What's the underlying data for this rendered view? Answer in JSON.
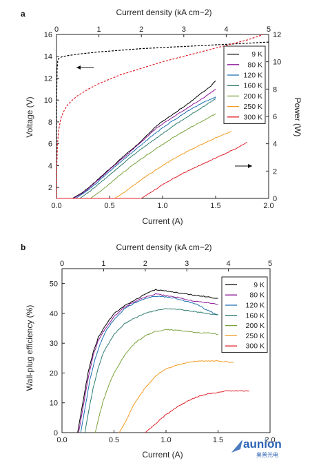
{
  "watermark": {
    "brand": "aunion",
    "tagline": "奥普光电"
  },
  "series_meta": [
    {
      "name": "9 K",
      "color": "#000000"
    },
    {
      "name": "80 K",
      "color": "#8e1a9a"
    },
    {
      "name": "120 K",
      "color": "#1a6fb0"
    },
    {
      "name": "160 K",
      "color": "#2b7a6e"
    },
    {
      "name": "200 K",
      "color": "#79a23a"
    },
    {
      "name": "250 K",
      "color": "#f29a1f"
    },
    {
      "name": "300 K",
      "color": "#e0202a"
    }
  ],
  "chart_data": [
    {
      "panel": "a",
      "type": "line",
      "xlabel": "Current (A)",
      "x_ticks": [
        "0.0",
        "0.5",
        "1.0",
        "1.5",
        "2.0"
      ],
      "xlim": [
        0,
        2.0
      ],
      "x2label": "Current density (kA cm−2)",
      "x2_ticks": [
        "0",
        "1",
        "2",
        "3",
        "4",
        "5"
      ],
      "x2lim": [
        0,
        5
      ],
      "ylabel": "Voltage (V)",
      "y_ticks": [
        "2",
        "4",
        "6",
        "8",
        "10",
        "12",
        "14",
        "16"
      ],
      "ylim": [
        1,
        16
      ],
      "y2label": "Power (W)",
      "y2_ticks": [
        "0",
        "2",
        "4",
        "6",
        "8",
        "10",
        "12"
      ],
      "y2lim": [
        0,
        12
      ],
      "legend": "top-right",
      "voltage_series": [
        {
          "name": "9 K",
          "x": [
            0,
            0.002,
            0.006,
            0.012,
            0.02,
            0.05,
            0.1,
            0.2,
            0.4,
            0.6,
            0.8,
            1.0,
            1.2,
            1.4,
            1.5,
            1.8,
            2.0
          ],
          "y": [
            1.1,
            10.5,
            12.8,
            13.6,
            13.8,
            13.95,
            14.05,
            14.2,
            14.4,
            14.55,
            14.7,
            14.8,
            14.9,
            15.0,
            15.05,
            15.2,
            15.3
          ]
        },
        {
          "name": "300 K",
          "x": [
            0,
            0.003,
            0.01,
            0.02,
            0.04,
            0.07,
            0.1,
            0.15,
            0.2,
            0.3,
            0.4,
            0.5,
            0.6,
            0.8,
            1.0,
            1.2,
            1.4,
            1.6,
            1.8,
            1.95
          ],
          "y": [
            1.1,
            4.0,
            6.0,
            7.2,
            8.3,
            9.0,
            9.5,
            10.0,
            10.4,
            11.0,
            11.5,
            11.9,
            12.3,
            12.9,
            13.5,
            14.0,
            14.5,
            15.0,
            15.5,
            16.0
          ]
        }
      ],
      "power_series": [
        {
          "name": "9 K",
          "x": [
            0,
            0.15,
            0.25,
            0.35,
            0.45,
            0.55,
            0.65,
            0.75,
            0.85,
            0.95,
            1.05,
            1.15,
            1.25,
            1.35,
            1.45,
            1.5
          ],
          "y": [
            0,
            0,
            0.45,
            1.1,
            1.8,
            2.5,
            3.2,
            3.85,
            4.6,
            5.35,
            5.9,
            6.45,
            7.0,
            7.6,
            8.2,
            8.6
          ]
        },
        {
          "name": "80 K",
          "x": [
            0,
            0.16,
            0.25,
            0.35,
            0.45,
            0.55,
            0.65,
            0.75,
            0.85,
            0.95,
            1.05,
            1.15,
            1.25,
            1.35,
            1.45,
            1.5
          ],
          "y": [
            0,
            0,
            0.4,
            1.05,
            1.75,
            2.45,
            3.1,
            3.8,
            4.5,
            5.2,
            5.7,
            6.2,
            6.7,
            7.2,
            7.7,
            8.0
          ]
        },
        {
          "name": "120 K",
          "x": [
            0,
            0.18,
            0.28,
            0.38,
            0.48,
            0.58,
            0.68,
            0.78,
            0.88,
            0.98,
            1.08,
            1.18,
            1.28,
            1.38,
            1.48,
            1.5
          ],
          "y": [
            0,
            0,
            0.5,
            1.15,
            1.85,
            2.5,
            3.15,
            3.8,
            4.45,
            5.05,
            5.6,
            6.1,
            6.6,
            7.0,
            7.35,
            7.4
          ]
        },
        {
          "name": "160 K",
          "x": [
            0,
            0.22,
            0.32,
            0.42,
            0.52,
            0.62,
            0.72,
            0.82,
            0.92,
            1.02,
            1.12,
            1.22,
            1.32,
            1.42,
            1.5
          ],
          "y": [
            0,
            0,
            0.55,
            1.2,
            1.85,
            2.5,
            3.15,
            3.75,
            4.3,
            4.85,
            5.4,
            5.9,
            6.4,
            6.9,
            7.3
          ]
        },
        {
          "name": "200 K",
          "x": [
            0,
            0.32,
            0.42,
            0.52,
            0.62,
            0.72,
            0.82,
            0.92,
            1.02,
            1.12,
            1.22,
            1.32,
            1.42,
            1.5
          ],
          "y": [
            0,
            0,
            0.55,
            1.2,
            1.85,
            2.45,
            3.0,
            3.55,
            4.05,
            4.55,
            5.0,
            5.45,
            5.85,
            6.2
          ]
        },
        {
          "name": "250 K",
          "x": [
            0,
            0.55,
            0.65,
            0.75,
            0.85,
            0.95,
            1.05,
            1.15,
            1.25,
            1.35,
            1.45,
            1.55,
            1.65
          ],
          "y": [
            0,
            0,
            0.5,
            1.1,
            1.65,
            2.15,
            2.65,
            3.1,
            3.5,
            3.9,
            4.25,
            4.6,
            4.9
          ]
        },
        {
          "name": "300 K",
          "x": [
            0,
            0.8,
            0.9,
            1.0,
            1.1,
            1.2,
            1.3,
            1.4,
            1.5,
            1.6,
            1.7,
            1.8
          ],
          "y": [
            0,
            0,
            0.5,
            1.0,
            1.45,
            1.85,
            2.25,
            2.6,
            2.95,
            3.3,
            3.7,
            4.1
          ]
        }
      ]
    },
    {
      "panel": "b",
      "type": "line",
      "xlabel": "Current (A)",
      "x_ticks": [
        "0.0",
        "0.5",
        "1.0",
        "1.5",
        "2.0"
      ],
      "xlim": [
        0,
        2.0
      ],
      "x2label": "Current density (kA cm−2)",
      "x2_ticks": [
        "0",
        "1",
        "2",
        "3",
        "4",
        "5"
      ],
      "x2lim": [
        0,
        5
      ],
      "ylabel": "Wall-plug efficiency (%)",
      "y_ticks": [
        "0",
        "10",
        "20",
        "30",
        "40",
        "50"
      ],
      "ylim": [
        0,
        55
      ],
      "legend": "top-right",
      "series": [
        {
          "name": "9 K",
          "x": [
            0.15,
            0.2,
            0.25,
            0.3,
            0.35,
            0.4,
            0.5,
            0.6,
            0.7,
            0.8,
            0.9,
            1.0,
            1.1,
            1.2,
            1.3,
            1.4,
            1.5
          ],
          "y": [
            0,
            10,
            20,
            27,
            32,
            35,
            40,
            42.5,
            44.5,
            46.5,
            48,
            47.5,
            47,
            46.5,
            46,
            45.5,
            45
          ]
        },
        {
          "name": "80 K",
          "x": [
            0.16,
            0.2,
            0.25,
            0.3,
            0.35,
            0.4,
            0.5,
            0.6,
            0.7,
            0.8,
            0.9,
            1.0,
            1.1,
            1.2,
            1.3,
            1.4,
            1.5
          ],
          "y": [
            0,
            8,
            18,
            26,
            31,
            34,
            39,
            42,
            44,
            45.5,
            46.5,
            46,
            45.5,
            44.5,
            44,
            43.5,
            43
          ]
        },
        {
          "name": "120 K",
          "x": [
            0.18,
            0.22,
            0.27,
            0.32,
            0.37,
            0.42,
            0.5,
            0.6,
            0.7,
            0.8,
            0.9,
            1.0,
            1.1,
            1.2,
            1.3,
            1.4,
            1.5
          ],
          "y": [
            0,
            8,
            18,
            25,
            30,
            34,
            38,
            41.5,
            43.5,
            45,
            45.8,
            45.5,
            45,
            44,
            43,
            41,
            39.5
          ]
        },
        {
          "name": "160 K",
          "x": [
            0.22,
            0.26,
            0.3,
            0.35,
            0.4,
            0.5,
            0.6,
            0.7,
            0.8,
            0.9,
            1.0,
            1.1,
            1.2,
            1.3,
            1.4,
            1.5
          ],
          "y": [
            0,
            8,
            15,
            22,
            27,
            33,
            36.5,
            38.5,
            40,
            41,
            41.5,
            41.5,
            41,
            40.5,
            40,
            39.5
          ]
        },
        {
          "name": "200 K",
          "x": [
            0.32,
            0.36,
            0.4,
            0.45,
            0.5,
            0.6,
            0.7,
            0.8,
            0.9,
            1.0,
            1.1,
            1.2,
            1.3,
            1.4,
            1.5
          ],
          "y": [
            0,
            6,
            11,
            16,
            20,
            26,
            30,
            32.5,
            34,
            34.5,
            34.5,
            34,
            33.5,
            33.5,
            33
          ]
        },
        {
          "name": "250 K",
          "x": [
            0.55,
            0.6,
            0.7,
            0.8,
            0.9,
            1.0,
            1.1,
            1.2,
            1.3,
            1.4,
            1.5,
            1.65
          ],
          "y": [
            0,
            3,
            10,
            15,
            19,
            21.5,
            22.5,
            23.5,
            24,
            24,
            24,
            23.5
          ]
        },
        {
          "name": "300 K",
          "x": [
            0.8,
            0.85,
            0.9,
            1.0,
            1.1,
            1.2,
            1.3,
            1.4,
            1.5,
            1.6,
            1.7,
            1.8
          ],
          "y": [
            0,
            1.5,
            3,
            6,
            8.5,
            10.5,
            12,
            13,
            13.5,
            14,
            14,
            14
          ]
        }
      ]
    }
  ]
}
